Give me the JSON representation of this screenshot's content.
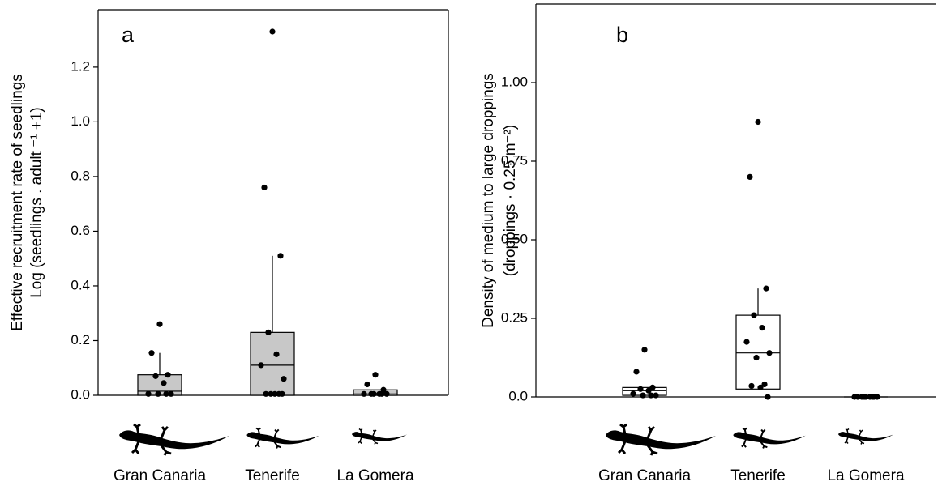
{
  "chart_data": [
    {
      "type": "box",
      "panel_label": "a",
      "y_label": [
        "Effective recruitment rate of seedlings",
        "Log (seedlings . adult ⁻¹ +1)"
      ],
      "categories": [
        "Gran Canaria",
        "Tenerife",
        "La Gomera"
      ],
      "box_color": "#c8c8c8",
      "boxes": [
        {
          "q1": 0.0,
          "median": 0.015,
          "q3": 0.075,
          "whisker_high": 0.155
        },
        {
          "q1": 0.0,
          "median": 0.11,
          "q3": 0.23,
          "whisker_high": 0.51
        },
        {
          "q1": 0.0,
          "median": 0.005,
          "q3": 0.02,
          "whisker_high": 0.02
        }
      ],
      "points": [
        [
          0.26,
          0.155,
          0.075,
          0.07,
          0.045,
          0.005,
          0.005,
          0.005,
          0.005
        ],
        [
          1.33,
          0.76,
          0.51,
          0.23,
          0.15,
          0.11,
          0.06,
          0.005,
          0.005,
          0.005,
          0.005,
          0.005
        ],
        [
          0.075,
          0.04,
          0.02,
          0.005,
          0.005,
          0.005,
          0.005,
          0.005,
          0.005
        ]
      ],
      "ylim": [
        0,
        1.41
      ],
      "yticks": [
        {
          "value": 0,
          "label": "0.0"
        },
        0.2,
        0.4,
        0.6,
        0.8,
        {
          "value": 1,
          "label": "1.0"
        },
        1.2
      ]
    },
    {
      "type": "box",
      "panel_label": "b",
      "y_label": [
        "Density of medium to large droppings",
        "(droppings · 0.25 m⁻²)"
      ],
      "categories": [
        "Gran Canaria",
        "Tenerife",
        "La Gomera"
      ],
      "box_color": "#ffffff",
      "boxes": [
        {
          "q1": 0.005,
          "median": 0.02,
          "q3": 0.03,
          "whisker_high": 0.03
        },
        {
          "q1": 0.025,
          "median": 0.14,
          "q3": 0.26,
          "whisker_high": 0.345
        },
        {
          "q1": 0.0,
          "median": 0.0,
          "q3": 0.0,
          "whisker_high": 0.0
        }
      ],
      "points": [
        [
          0.15,
          0.08,
          0.03,
          0.025,
          0.02,
          0.01,
          0.005,
          0.005,
          0.005
        ],
        [
          0.875,
          0.7,
          0.345,
          0.26,
          0.22,
          0.175,
          0.14,
          0.125,
          0.04,
          0.035,
          0.03,
          0.0
        ],
        [
          0.0,
          0.0,
          0.0,
          0.0,
          0.0,
          0.0,
          0.0,
          0.0,
          0.0
        ]
      ],
      "ylim": [
        0,
        1.25
      ],
      "yticks": [
        {
          "value": 0,
          "label": "0.0"
        },
        0.25,
        {
          "value": 0.5,
          "label": "0.50"
        },
        0.75,
        {
          "value": 1,
          "label": "1.00"
        }
      ]
    }
  ]
}
